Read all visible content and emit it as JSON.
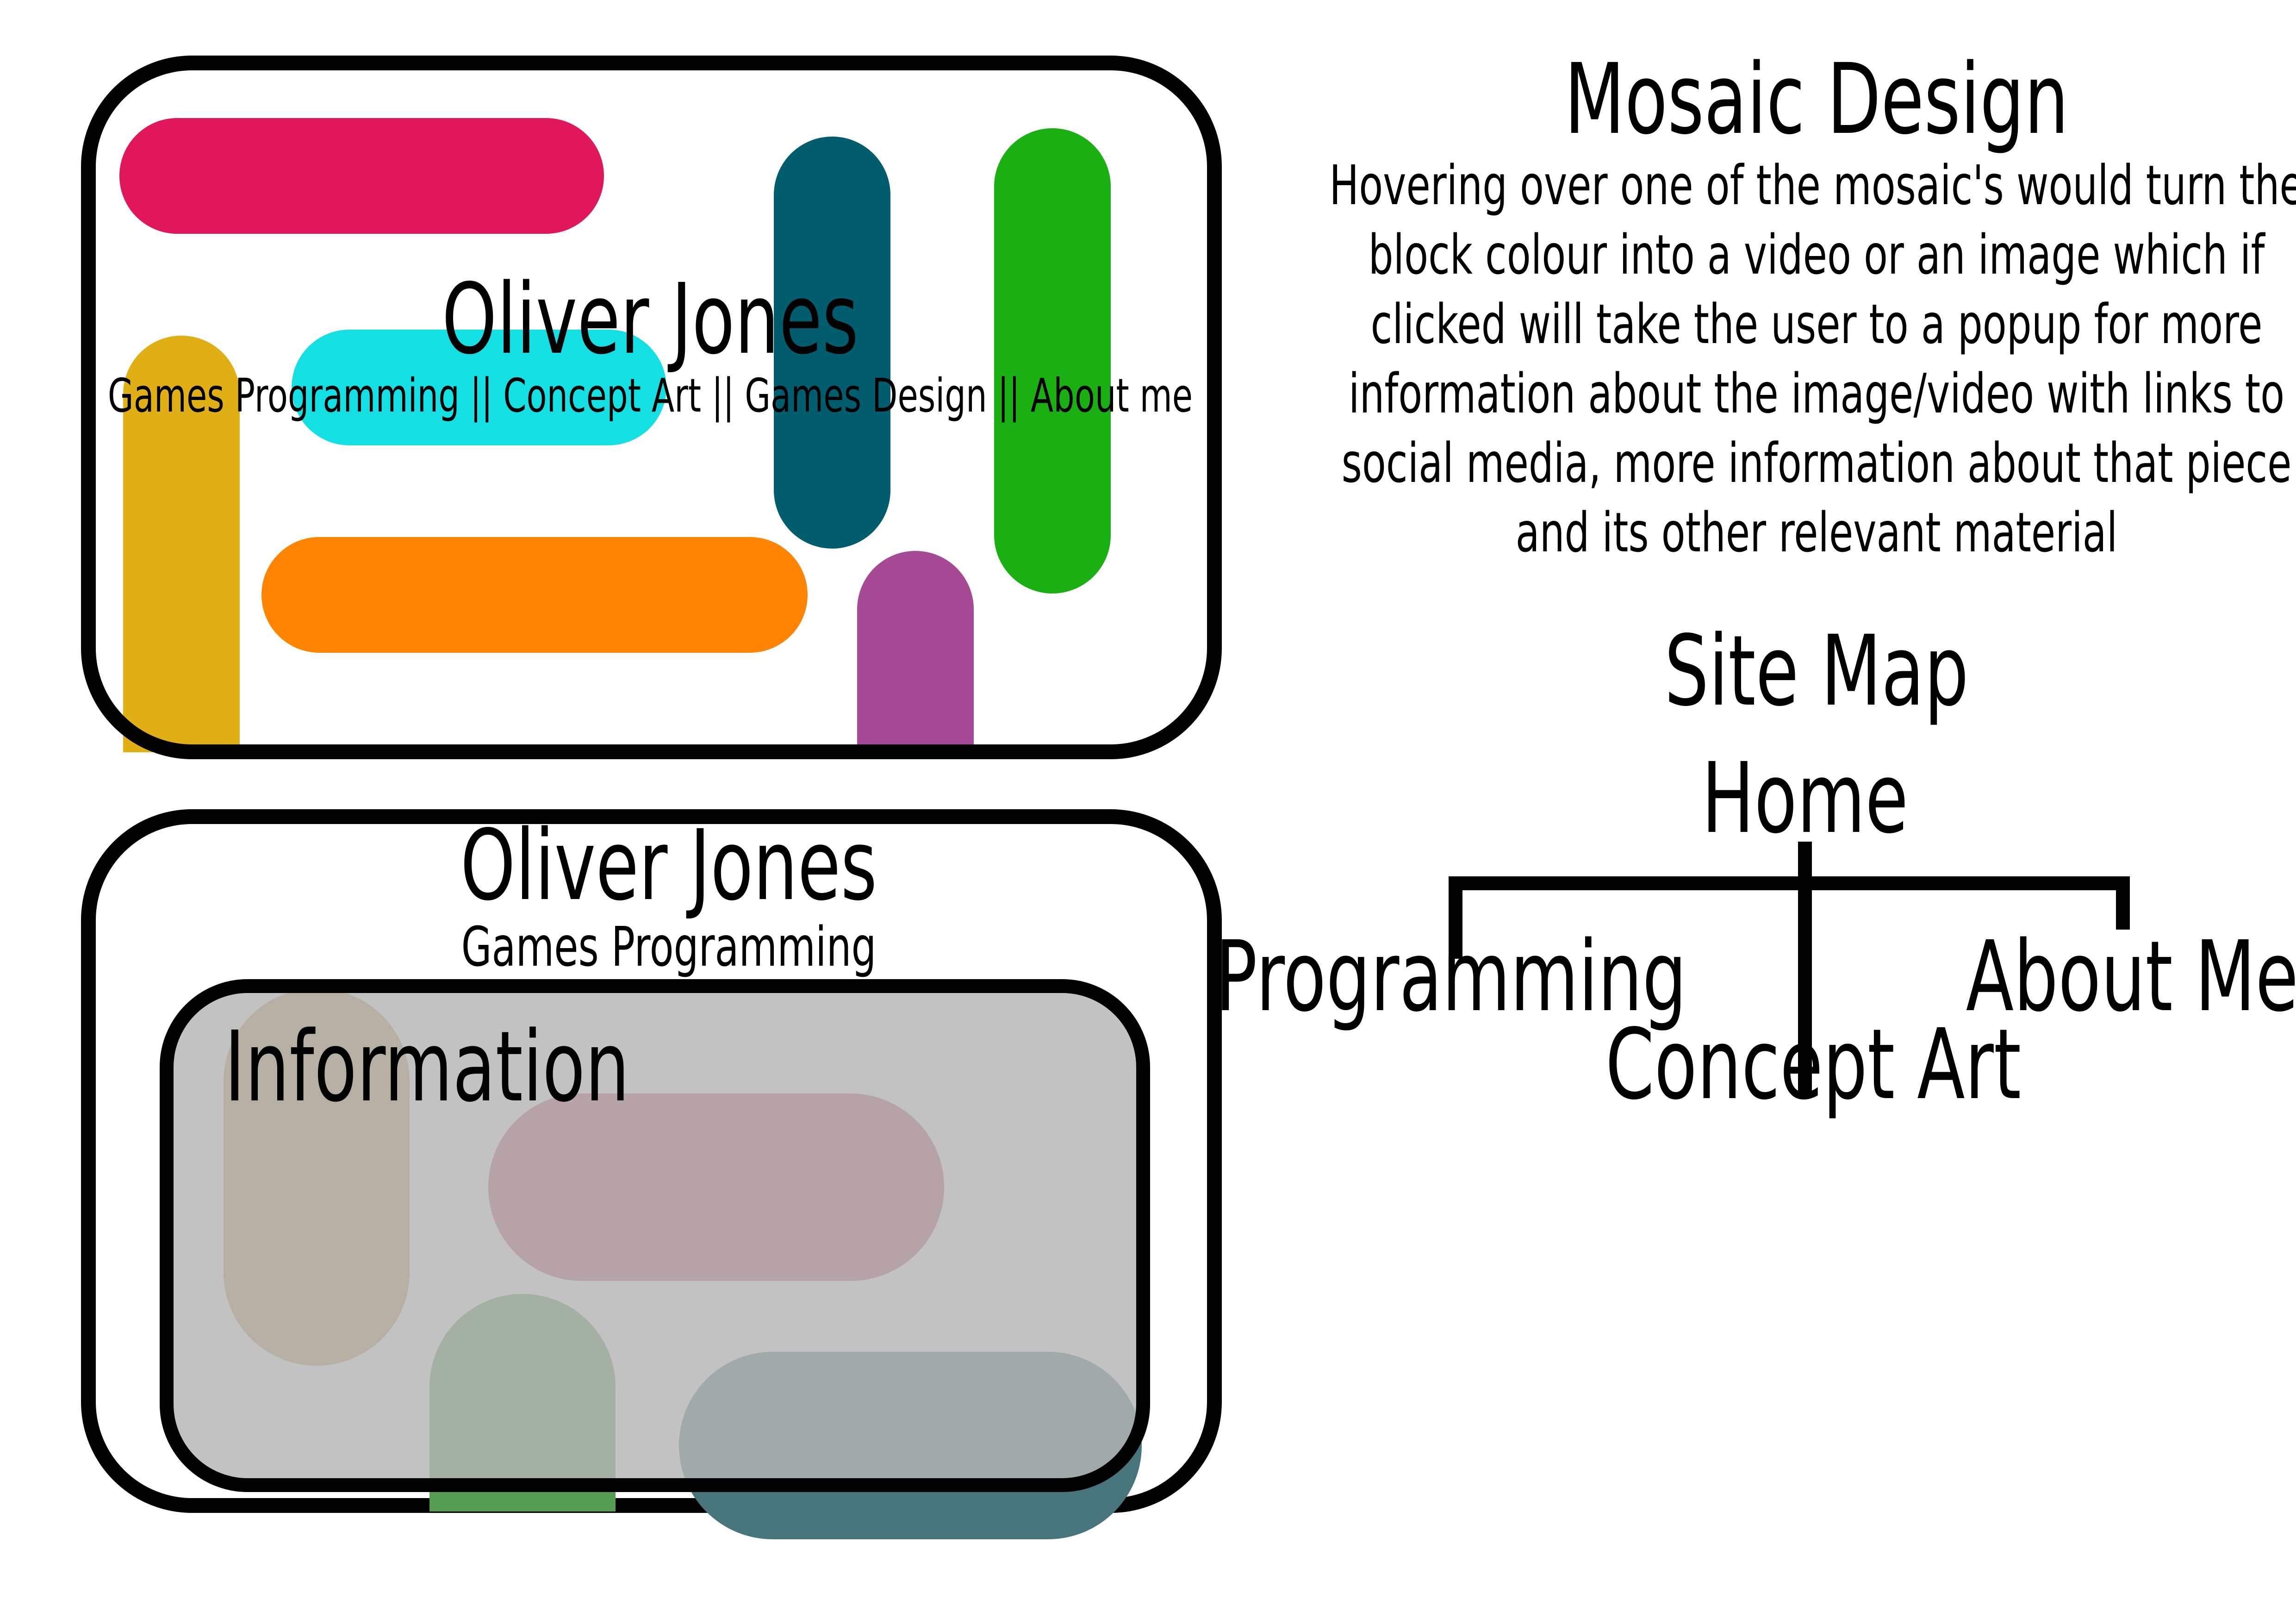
{
  "mockup_home": {
    "title": "Oliver Jones",
    "nav": "Games Programming || Concept Art || Games Design || About me",
    "tiles": [
      {
        "name": "tile-crimson",
        "color": "#e0175a"
      },
      {
        "name": "tile-cyan",
        "color": "#14e0e4"
      },
      {
        "name": "tile-teal",
        "color": "#005d6e"
      },
      {
        "name": "tile-green",
        "color": "#1aaf12"
      },
      {
        "name": "tile-gold",
        "color": "#e0ae15"
      },
      {
        "name": "tile-orange",
        "color": "#ff8402"
      },
      {
        "name": "tile-purple",
        "color": "#a54b96"
      }
    ]
  },
  "mockup_page": {
    "title": "Oliver Jones",
    "subtitle": "Games Programming",
    "info_label": "Information",
    "tiles": [
      {
        "name": "tile-gold-muted",
        "color": "#b59b52"
      },
      {
        "name": "tile-crimson-muted",
        "color": "#b55272"
      },
      {
        "name": "tile-green-muted",
        "color": "#569c52"
      },
      {
        "name": "tile-teal-muted",
        "color": "#48747c"
      }
    ]
  },
  "description": {
    "heading": "Mosaic Design",
    "lines": [
      "Hovering over one of the mosaic's would turn the",
      "block colour into a video or an image which if",
      "clicked will take the user to a popup for more",
      "information about the image/video with links to",
      "social media, more information about that piece",
      "and its other relevant material"
    ]
  },
  "sitemap": {
    "heading": "Site Map",
    "root": "Home",
    "children": [
      "Programming",
      "Concept Art",
      "About Me"
    ]
  }
}
